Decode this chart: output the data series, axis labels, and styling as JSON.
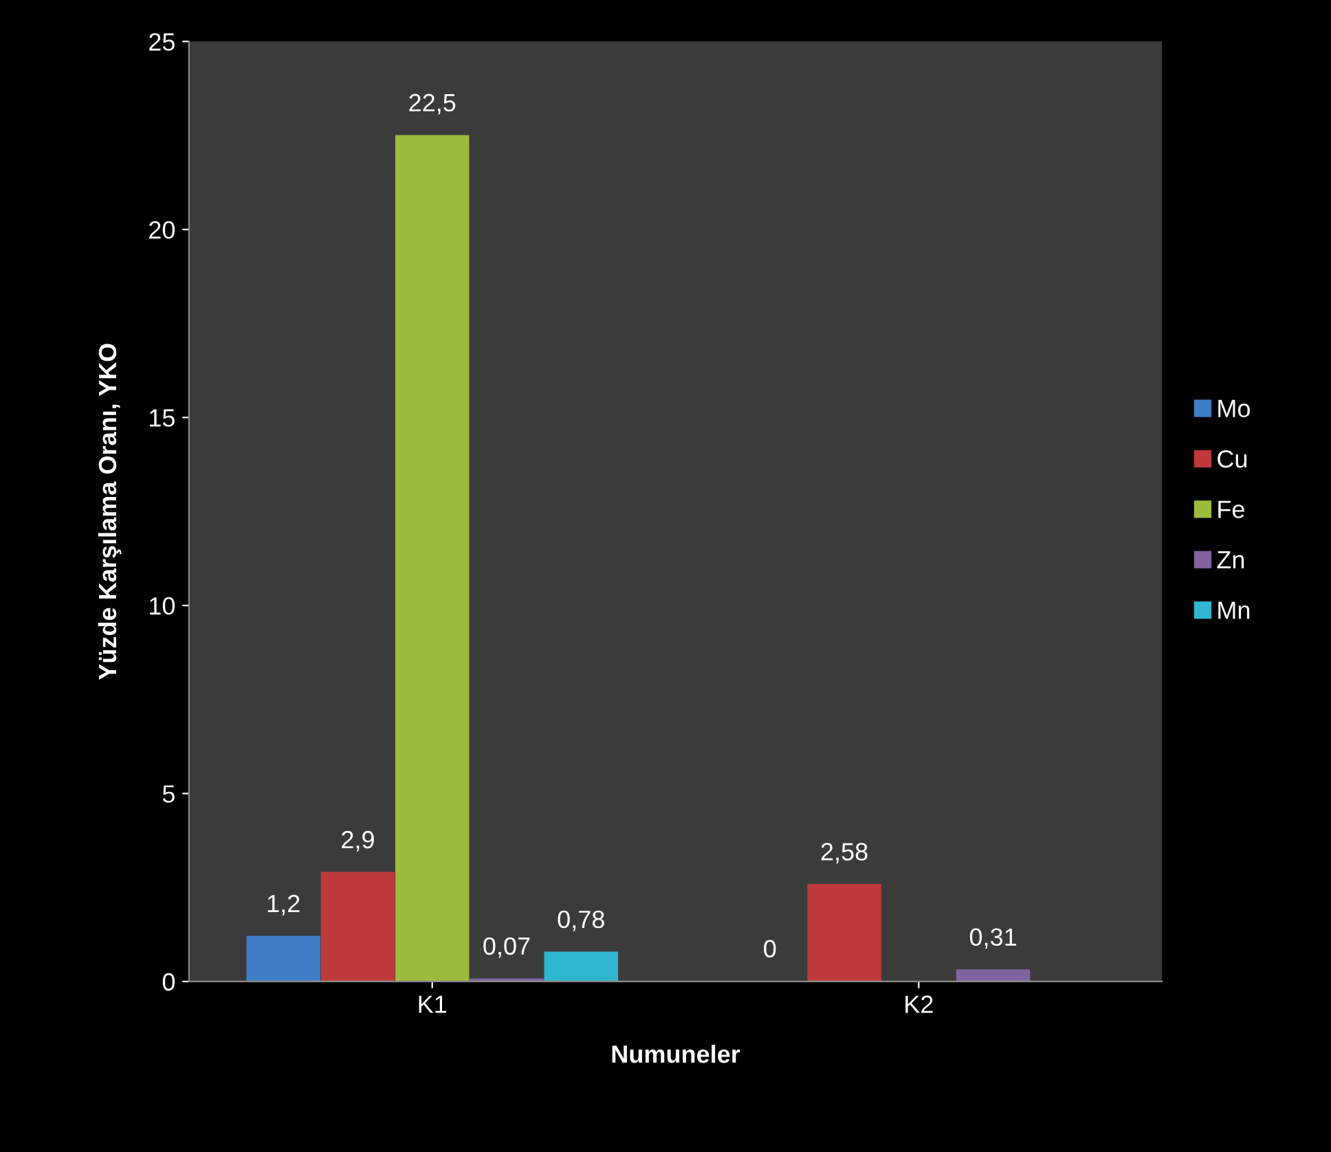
{
  "chart_data": {
    "type": "bar",
    "xlabel": "Numuneler",
    "ylabel": "Yüzde Karşılama Oranı, YKO",
    "categories": [
      "K1",
      "K2"
    ],
    "series": [
      {
        "name": "Mo",
        "color": "#3f7fc8",
        "values": [
          1.2,
          0
        ],
        "value_labels": [
          "1,2",
          "0"
        ]
      },
      {
        "name": "Cu",
        "color": "#c0393a",
        "values": [
          2.9,
          2.58
        ],
        "value_labels": [
          "2,9",
          "2,58"
        ]
      },
      {
        "name": "Fe",
        "color": "#9bbb3c",
        "values": [
          22.5,
          null
        ],
        "value_labels": [
          "22,5",
          null
        ]
      },
      {
        "name": "Zn",
        "color": "#8064a2",
        "values": [
          0.07,
          0.31
        ],
        "value_labels": [
          "0,07",
          "0,31"
        ]
      },
      {
        "name": "Mn",
        "color": "#31b6d0",
        "values": [
          0.78,
          null
        ],
        "value_labels": [
          "0,78",
          null
        ]
      }
    ],
    "ylim": [
      0,
      25
    ],
    "yticks": [
      0,
      5,
      10,
      15,
      20,
      25
    ],
    "grid": false,
    "legend": "right"
  }
}
